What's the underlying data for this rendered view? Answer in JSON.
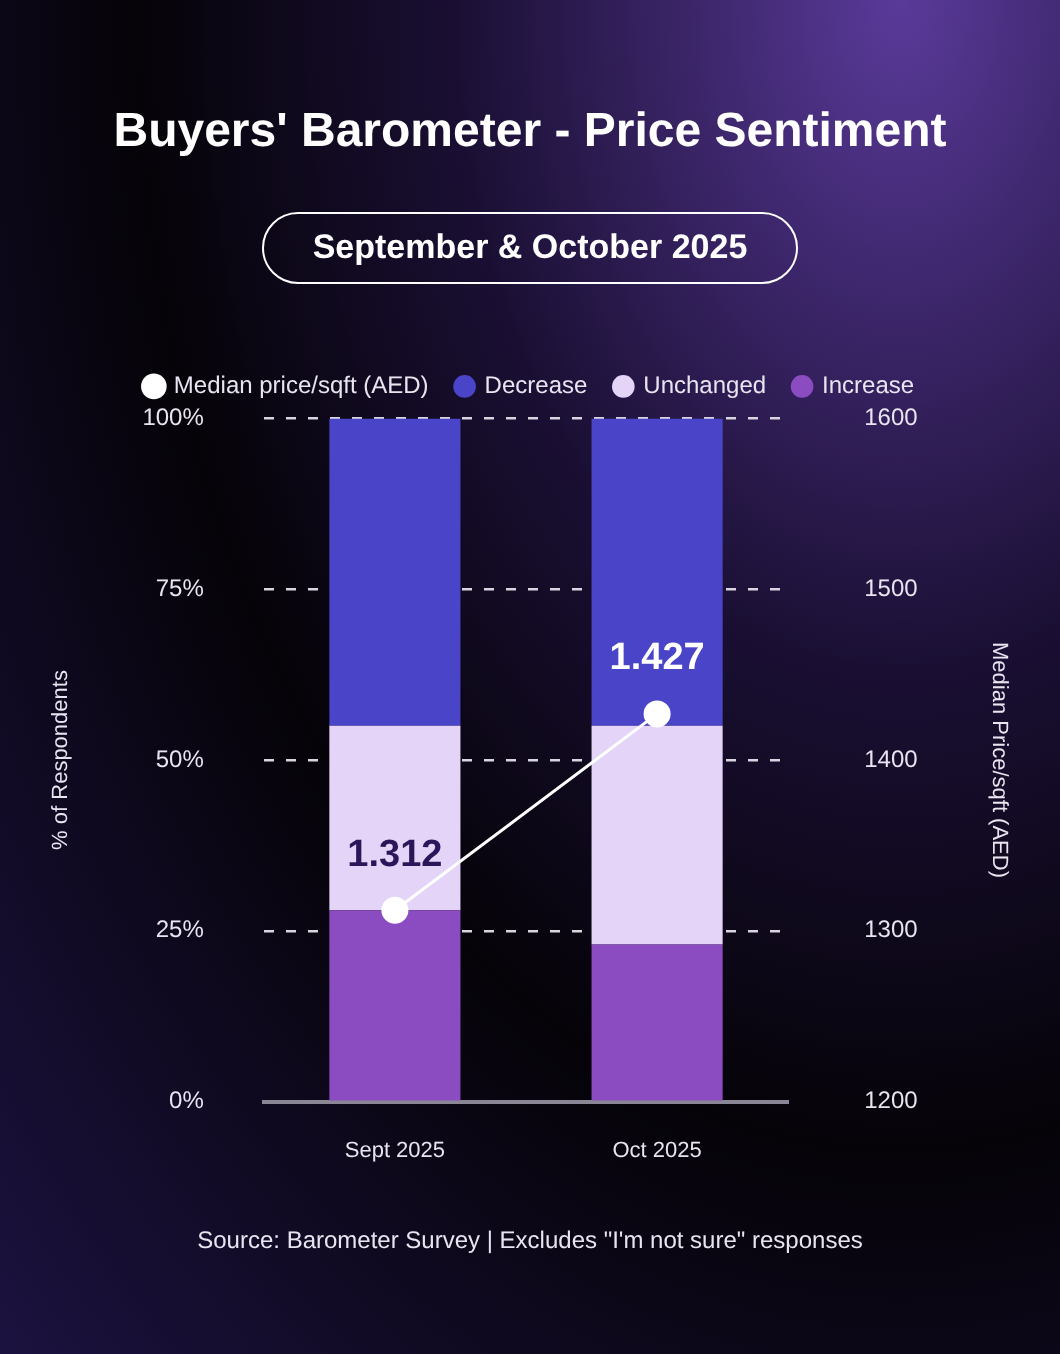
{
  "chart_data": {
    "type": "bar",
    "title": "Buyers' Barometer - Price Sentiment",
    "subtitle": "September & October 2025",
    "categories": [
      "Sept 2025",
      "Oct 2025"
    ],
    "stacked": true,
    "ylabel": "% of Respondents",
    "y2label": "Median Price/sqft (AED)",
    "ylim": [
      0,
      100
    ],
    "yticks": [
      {
        "value": 0,
        "label": "0%"
      },
      {
        "value": 25,
        "label": "25%"
      },
      {
        "value": 50,
        "label": "50%"
      },
      {
        "value": 75,
        "label": "75%"
      },
      {
        "value": 100,
        "label": "100%"
      }
    ],
    "y2lim": [
      1200,
      1600
    ],
    "y2ticks": [
      1200,
      1300,
      1400,
      1500,
      1600
    ],
    "series": [
      {
        "name": "Median price/sqft (AED)",
        "type": "line",
        "axis": "y2",
        "color": "#ffffff",
        "values": [
          1312,
          1427
        ],
        "value_labels": [
          "1.312",
          "1.427"
        ],
        "marker": "circle"
      },
      {
        "name": "Increase",
        "color": "#8a4cc0",
        "values": [
          28,
          23
        ]
      },
      {
        "name": "Unchanged",
        "color": "#e4d4f8",
        "values": [
          27,
          32
        ]
      },
      {
        "name": "Decrease",
        "color": "#4a45c8",
        "values": [
          45,
          45
        ]
      }
    ],
    "grid": "y",
    "legend": "top",
    "annotations": [
      "Source: Barometer Survey | Excludes \"I'm not sure\" responses"
    ]
  }
}
